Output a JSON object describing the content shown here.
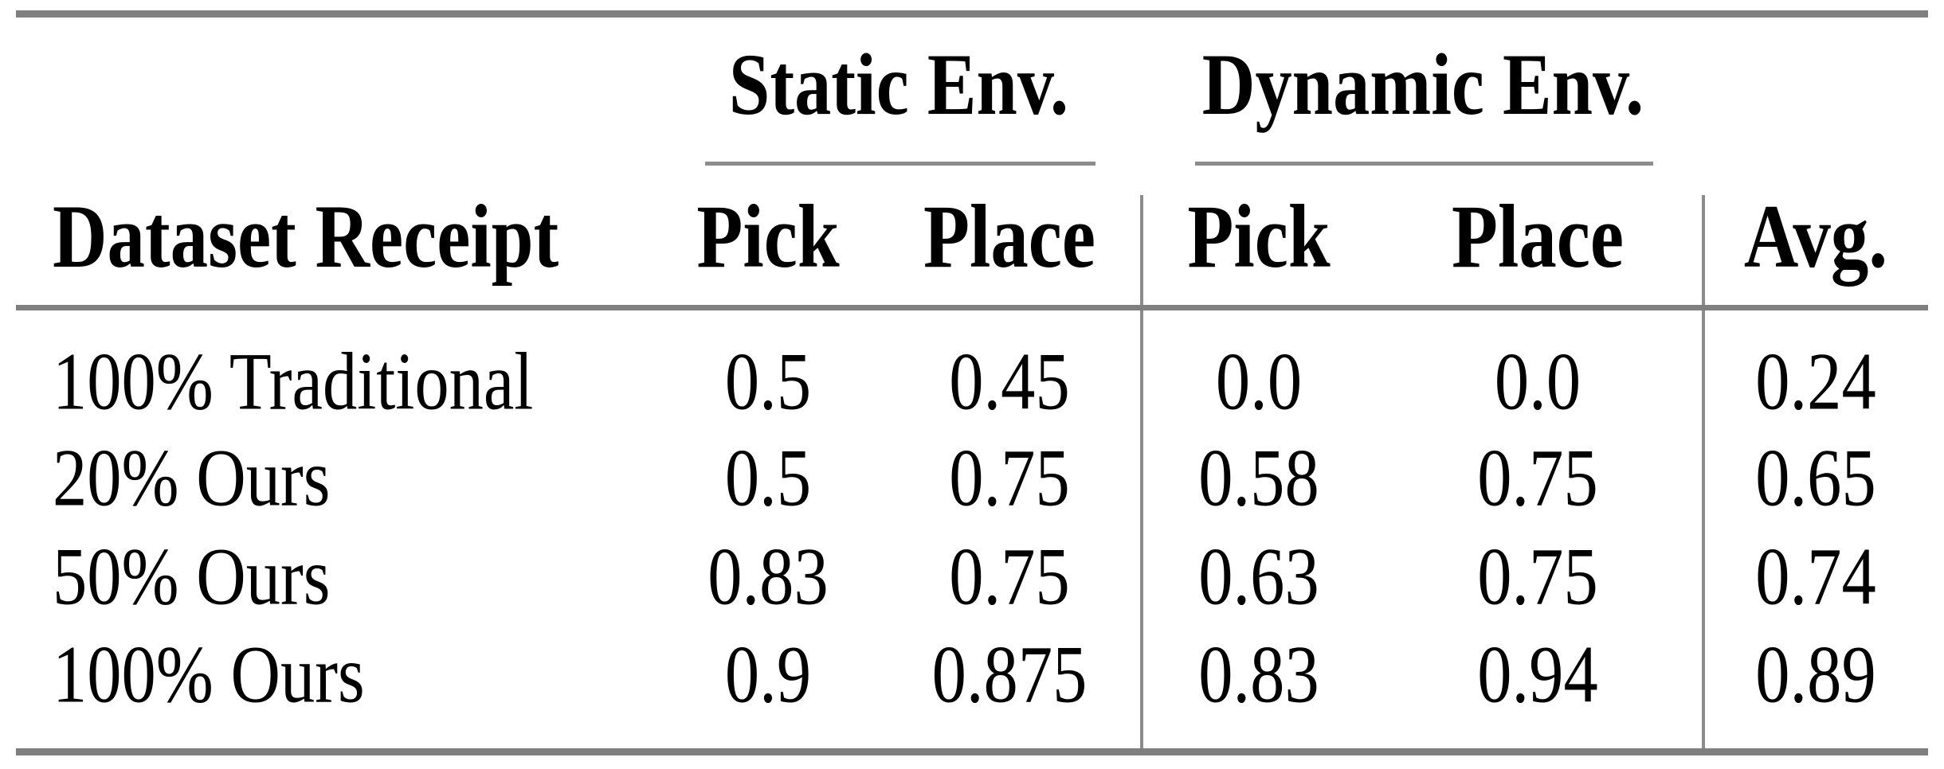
{
  "header": {
    "static_env": "Static Env.",
    "dynamic_env": "Dynamic Env.",
    "dataset_receipt": "Dataset Receipt",
    "static_pick": "Pick",
    "static_place": "Place",
    "dynamic_pick": "Pick",
    "dynamic_place": "Place",
    "avg": "Avg."
  },
  "rows": [
    {
      "label": "100% Traditional",
      "values": [
        "0.5",
        "0.45",
        "0.0",
        "0.0",
        "0.24"
      ]
    },
    {
      "label": "20% Ours",
      "values": [
        "0.5",
        "0.75",
        "0.58",
        "0.75",
        "0.65"
      ]
    },
    {
      "label": "50% Ours",
      "values": [
        "0.83",
        "0.75",
        "0.63",
        "0.75",
        "0.74"
      ]
    },
    {
      "label": "100% Ours",
      "values": [
        "0.9",
        "0.875",
        "0.83",
        "0.94",
        "0.89"
      ]
    }
  ],
  "rule_color": "#7f7f7f",
  "chart_data": {
    "type": "table",
    "column_groups": [
      "",
      "Static Env.",
      "Static Env.",
      "Dynamic Env.",
      "Dynamic Env.",
      ""
    ],
    "columns": [
      "Dataset Receipt",
      "Pick",
      "Place",
      "Pick",
      "Place",
      "Avg."
    ],
    "rows": [
      [
        "100% Traditional",
        0.5,
        0.45,
        0.0,
        0.0,
        0.24
      ],
      [
        "20% Ours",
        0.5,
        0.75,
        0.58,
        0.75,
        0.65
      ],
      [
        "50% Ours",
        0.83,
        0.75,
        0.63,
        0.75,
        0.74
      ],
      [
        "100% Ours",
        0.9,
        0.875,
        0.83,
        0.94,
        0.89
      ]
    ]
  }
}
